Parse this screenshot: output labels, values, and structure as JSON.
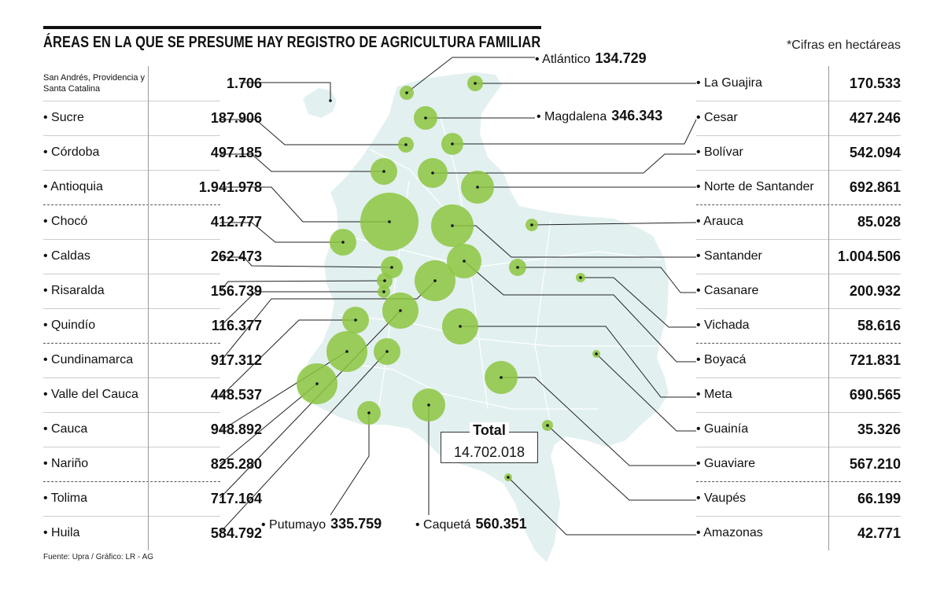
{
  "header": {
    "title": "ÁREAS EN LA QUE SE PRESUME HAY REGISTRO DE AGRICULTURA FAMILIAR",
    "note": "*Cifras en hectáreas",
    "source": "Fuente: Upra / Gráfico: LR - AG"
  },
  "colors": {
    "bubble": "#8cc63f",
    "map": "#e2f0f0",
    "map_border": "#ffffff",
    "leader": "#222222"
  },
  "left_table": [
    {
      "name": "San Andrés, Providencia y Santa Catalina",
      "value": "1.706"
    },
    {
      "name": "• Sucre",
      "value": "187.906"
    },
    {
      "name": "• Córdoba",
      "value": "497.185"
    },
    {
      "name": "• Antioquia",
      "value": "1.941.978"
    },
    {
      "name": "• Chocó",
      "value": "412.777"
    },
    {
      "name": "• Caldas",
      "value": "262.473"
    },
    {
      "name": "• Risaralda",
      "value": "156.739"
    },
    {
      "name": "• Quindío",
      "value": "116.377"
    },
    {
      "name": "• Cundinamarca",
      "value": "917.312"
    },
    {
      "name": "• Valle del Cauca",
      "value": "448.537"
    },
    {
      "name": "• Cauca",
      "value": "948.892"
    },
    {
      "name": "• Nariño",
      "value": "825.280"
    },
    {
      "name": "• Tolima",
      "value": "717.164"
    },
    {
      "name": "• Huila",
      "value": "584.792"
    }
  ],
  "right_table": [
    {
      "name": "• La Guajira",
      "value": "170.533"
    },
    {
      "name": "• Cesar",
      "value": "427.246"
    },
    {
      "name": "• Bolívar",
      "value": "542.094"
    },
    {
      "name": "• Norte de Santander",
      "value": "692.861"
    },
    {
      "name": "• Arauca",
      "value": "85.028"
    },
    {
      "name": "• Santander",
      "value": "1.004.506"
    },
    {
      "name": "• Casanare",
      "value": "200.932"
    },
    {
      "name": "• Vichada",
      "value": "58.616"
    },
    {
      "name": "• Boyacá",
      "value": "721.831"
    },
    {
      "name": "• Meta",
      "value": "690.565"
    },
    {
      "name": "• Guainía",
      "value": "35.326"
    },
    {
      "name": "• Guaviare",
      "value": "567.210"
    },
    {
      "name": "• Vaupés",
      "value": "66.199"
    },
    {
      "name": "• Amazonas",
      "value": "42.771"
    }
  ],
  "callouts": {
    "atlantico": {
      "name": "• Atlántico",
      "value": "134.729"
    },
    "magdalena": {
      "name": "• Magdalena",
      "value": "346.343"
    },
    "putumayo": {
      "name": "• Putumayo",
      "value": "335.759"
    },
    "caqueta": {
      "name": "• Caquetá",
      "value": "560.351"
    }
  },
  "total": {
    "label": "Total",
    "value": "14.702.018"
  }
}
